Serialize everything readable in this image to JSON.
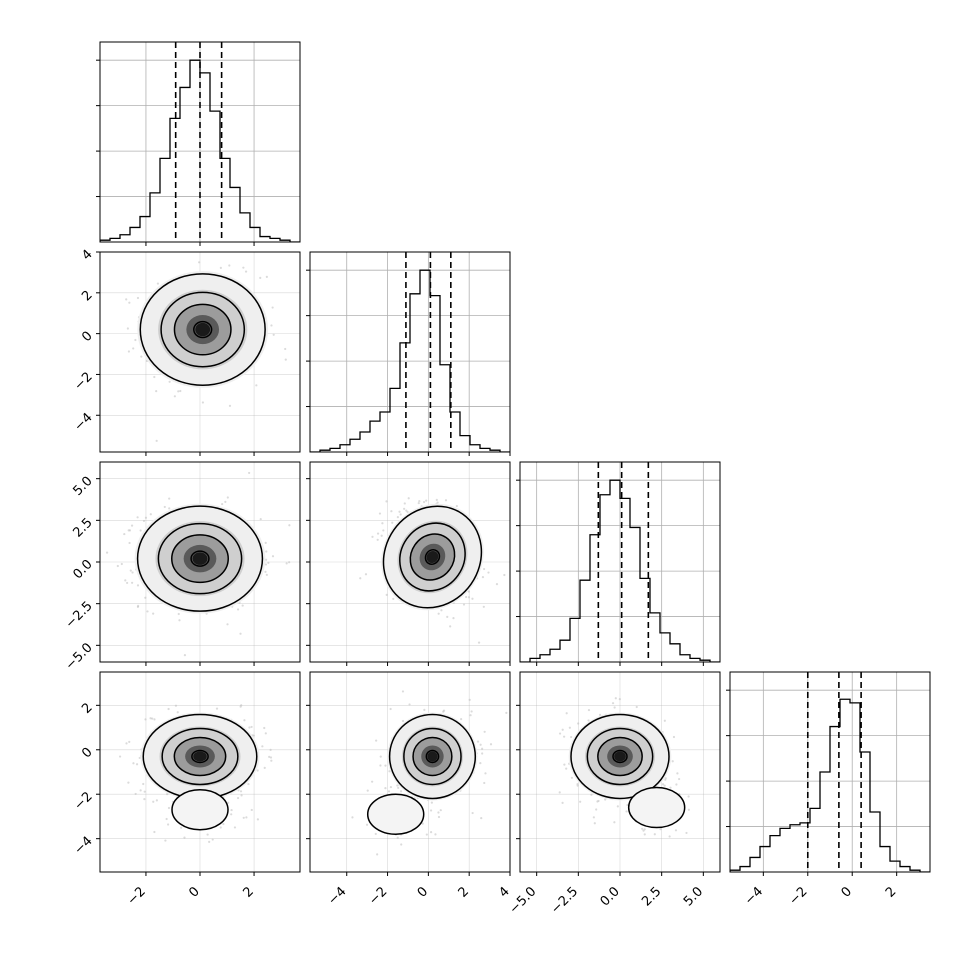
{
  "chart_data": {
    "type": "corner",
    "parameters": [
      {
        "range": [
          -3.7,
          3.7
        ],
        "xticks": [
          -2,
          0,
          2
        ],
        "xtick_labels": [
          "−2",
          "0",
          "2"
        ],
        "yticks": [
          -4,
          -2,
          0,
          2,
          4
        ],
        "ytick_labels": [
          "−4",
          "−2",
          "0",
          "2",
          "4"
        ],
        "hist_values": [
          0.01,
          0.02,
          0.04,
          0.08,
          0.14,
          0.27,
          0.46,
          0.68,
          0.85,
          1.0,
          0.93,
          0.72,
          0.46,
          0.3,
          0.16,
          0.08,
          0.03,
          0.02,
          0.01,
          0.0
        ],
        "quantiles": [
          -0.9,
          0.0,
          0.8
        ]
      },
      {
        "range": [
          -5.8,
          4.0
        ],
        "xticks": [
          -4,
          -2,
          0,
          2,
          4
        ],
        "xtick_labels": [
          "−4",
          "−2",
          "0",
          "2",
          "4"
        ],
        "yticks": [
          -4,
          -2,
          0,
          2,
          4
        ],
        "ytick_labels": [
          "−4",
          "−2",
          "0",
          "2",
          "4"
        ],
        "hist_values": [
          0.0,
          0.01,
          0.02,
          0.04,
          0.07,
          0.11,
          0.17,
          0.22,
          0.35,
          0.6,
          0.87,
          1.0,
          0.86,
          0.48,
          0.22,
          0.09,
          0.04,
          0.02,
          0.01,
          0.0
        ],
        "quantiles": [
          -1.1,
          0.1,
          1.1
        ]
      },
      {
        "range": [
          -6.0,
          6.0
        ],
        "xticks": [
          -5.0,
          -2.5,
          0.0,
          2.5,
          5.0
        ],
        "xtick_labels": [
          "−5.0",
          "−2.5",
          "0.0",
          "2.5",
          "5.0"
        ],
        "yticks": [
          -5.0,
          -2.5,
          0.0,
          2.5,
          5.0
        ],
        "ytick_labels": [
          "−5.0",
          "−2.5",
          "0.0",
          "2.5",
          "5.0"
        ],
        "hist_values": [
          0.0,
          0.02,
          0.04,
          0.07,
          0.12,
          0.24,
          0.45,
          0.7,
          0.92,
          1.0,
          0.9,
          0.74,
          0.46,
          0.27,
          0.16,
          0.1,
          0.04,
          0.02,
          0.01,
          0.0
        ],
        "quantiles": [
          -1.3,
          0.1,
          1.7
        ]
      },
      {
        "range": [
          -5.5,
          3.5
        ],
        "xticks": [
          -4,
          -2,
          0,
          2
        ],
        "xtick_labels": [
          "−4",
          "−2",
          "0",
          "2"
        ],
        "yticks": [
          -4,
          -2,
          0,
          2
        ],
        "ytick_labels": [
          "−4",
          "−2",
          "0",
          "2"
        ],
        "hist_values": [
          0.01,
          0.03,
          0.08,
          0.14,
          0.2,
          0.24,
          0.26,
          0.27,
          0.35,
          0.55,
          0.8,
          0.95,
          0.93,
          0.66,
          0.33,
          0.14,
          0.06,
          0.03,
          0.01,
          0.0
        ],
        "quantiles": [
          -2.0,
          -0.6,
          0.4
        ]
      }
    ],
    "pairs": [
      {
        "row": 1,
        "col": 0,
        "center": [
          0.1,
          0.2
        ],
        "sd": [
          1.1,
          1.3
        ],
        "corr": 0.0,
        "second_cluster": null
      },
      {
        "row": 2,
        "col": 0,
        "center": [
          0.0,
          0.2
        ],
        "sd": [
          1.1,
          1.5
        ],
        "corr": 0.0,
        "second_cluster": null
      },
      {
        "row": 2,
        "col": 1,
        "center": [
          0.2,
          0.3
        ],
        "sd": [
          1.1,
          1.5
        ],
        "corr": -0.35,
        "second_cluster": null
      },
      {
        "row": 3,
        "col": 0,
        "center": [
          0.0,
          -0.3
        ],
        "sd": [
          1.0,
          0.9
        ],
        "corr": 0.0,
        "second_cluster": [
          0.0,
          -2.7
        ]
      },
      {
        "row": 3,
        "col": 1,
        "center": [
          0.2,
          -0.3
        ],
        "sd": [
          1.0,
          0.9
        ],
        "corr": 0.0,
        "second_cluster": [
          -1.6,
          -2.9
        ]
      },
      {
        "row": 3,
        "col": 2,
        "center": [
          0.0,
          -0.3
        ],
        "sd": [
          1.4,
          0.9
        ],
        "corr": 0.0,
        "second_cluster": [
          2.2,
          -2.6
        ]
      }
    ],
    "grid": true,
    "colors": {
      "line": "#000000",
      "points": "#bdbdbd",
      "grid": "#b0b0b0"
    }
  }
}
